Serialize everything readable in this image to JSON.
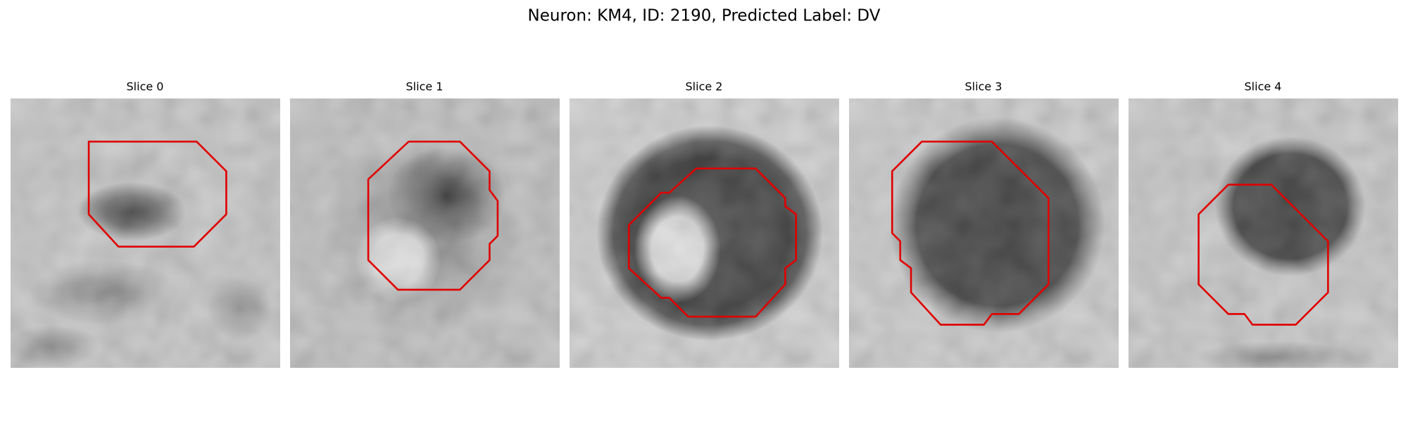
{
  "title": "Neuron: KM4, ID: 2190, Predicted Label: DV",
  "panels": [
    {
      "title": "Slice 0"
    },
    {
      "title": "Slice 1"
    },
    {
      "title": "Slice 2"
    },
    {
      "title": "Slice 3"
    },
    {
      "title": "Slice 4"
    }
  ]
}
